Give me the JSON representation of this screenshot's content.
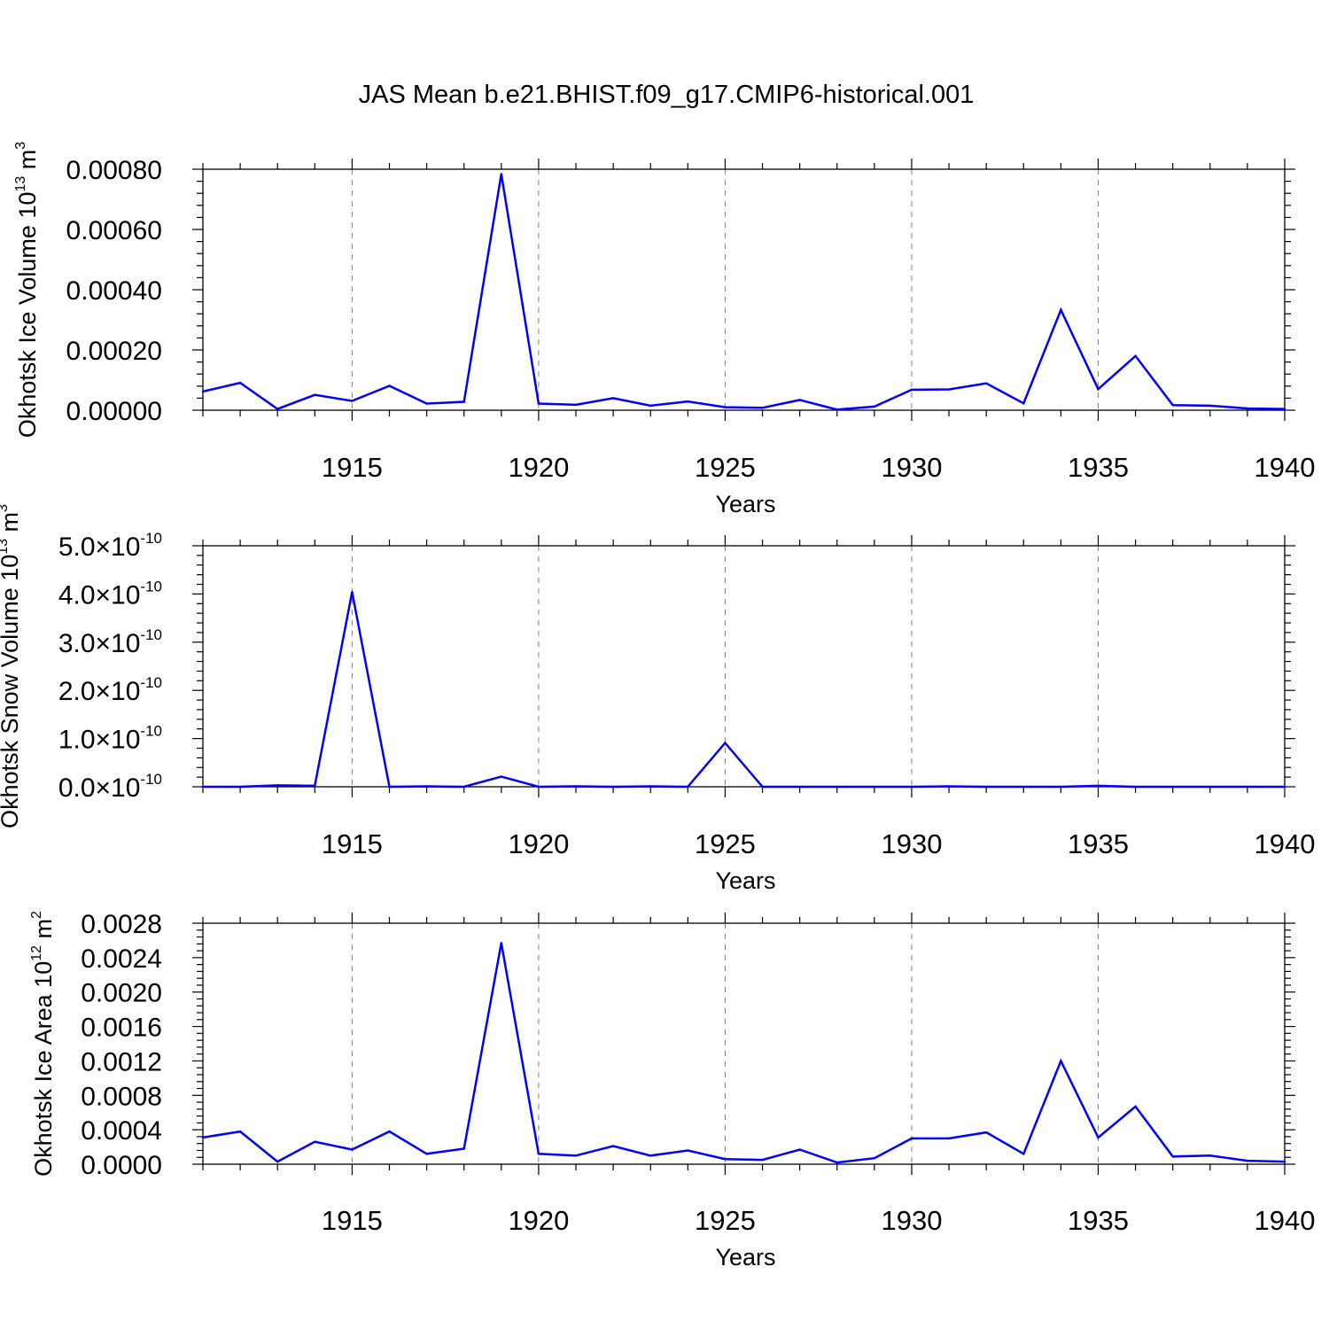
{
  "title": "JAS Mean b.e21.BHIST.f09_g17.CMIP6-historical.001",
  "colors": {
    "line": "#0000ff",
    "axis": "#000000",
    "grid": "#808080"
  },
  "chart_data": [
    {
      "type": "line",
      "ylabel": "Okhotsk Ice Volume 10",
      "ylabel_exp": "13",
      "ylabel_unit": " m",
      "ylabel_unit_exp": "3",
      "xlabel": "Years",
      "xlim": [
        1911,
        1940
      ],
      "ylim": [
        0,
        0.0008
      ],
      "x_ticks": [
        1915,
        1920,
        1925,
        1930,
        1935,
        1940
      ],
      "y_ticks": [
        {
          "value": 0,
          "label": "0.00000"
        },
        {
          "value": 0.0002,
          "label": "0.00020"
        },
        {
          "value": 0.0004,
          "label": "0.00040"
        },
        {
          "value": 0.0006,
          "label": "0.00060"
        },
        {
          "value": 0.0008,
          "label": "0.00080"
        }
      ],
      "grid": "vertical dashed at major x ticks",
      "x": [
        1911,
        1912,
        1913,
        1914,
        1915,
        1916,
        1917,
        1918,
        1919,
        1920,
        1921,
        1922,
        1923,
        1924,
        1925,
        1926,
        1927,
        1928,
        1929,
        1930,
        1931,
        1932,
        1933,
        1934,
        1935,
        1936,
        1937,
        1938,
        1939,
        1940
      ],
      "values": [
        6.2e-05,
        9.1e-05,
        4e-06,
        5.1e-05,
        3.1e-05,
        8.1e-05,
        2.2e-05,
        2.8e-05,
        0.000784,
        2.2e-05,
        1.8e-05,
        4e-05,
        1.5e-05,
        2.9e-05,
        1e-05,
        8e-06,
        3.4e-05,
        2e-06,
        1.2e-05,
        6.8e-05,
        6.9e-05,
        8.9e-05,
        2.3e-05,
        0.000333,
        7e-05,
        0.00018,
        1.7e-05,
        1.5e-05,
        6e-06,
        4e-06
      ]
    },
    {
      "type": "line",
      "ylabel": "Okhotsk Snow Volume 10",
      "ylabel_exp": "13",
      "ylabel_unit": " m",
      "ylabel_unit_exp": "3",
      "xlabel": "Years",
      "xlim": [
        1911,
        1940
      ],
      "ylim": [
        0,
        5e-10
      ],
      "x_ticks": [
        1915,
        1920,
        1925,
        1930,
        1935,
        1940
      ],
      "y_ticks": [
        {
          "value": 0,
          "label": "0.0",
          "sci": "×10",
          "exp": "-10"
        },
        {
          "value": 1e-10,
          "label": "1.0",
          "sci": "×10",
          "exp": "-10"
        },
        {
          "value": 2e-10,
          "label": "2.0",
          "sci": "×10",
          "exp": "-10"
        },
        {
          "value": 3e-10,
          "label": "3.0",
          "sci": "×10",
          "exp": "-10"
        },
        {
          "value": 4e-10,
          "label": "4.0",
          "sci": "×10",
          "exp": "-10"
        },
        {
          "value": 5e-10,
          "label": "5.0",
          "sci": "×10",
          "exp": "-10"
        }
      ],
      "grid": "vertical dashed at major x ticks",
      "x": [
        1911,
        1912,
        1913,
        1914,
        1915,
        1916,
        1917,
        1918,
        1919,
        1920,
        1921,
        1922,
        1923,
        1924,
        1925,
        1926,
        1927,
        1928,
        1929,
        1930,
        1931,
        1932,
        1933,
        1934,
        1935,
        1936,
        1937,
        1938,
        1939,
        1940
      ],
      "values": [
        0.0,
        0.0,
        3e-12,
        2e-12,
        4.04e-10,
        0.0,
        1e-12,
        0.0,
        2.1e-11,
        0.0,
        1e-12,
        0.0,
        1e-12,
        0.0,
        9.1e-11,
        0.0,
        0.0,
        0.0,
        0.0,
        0.0,
        1e-12,
        0.0,
        0.0,
        0.0,
        2e-12,
        0.0,
        0.0,
        0.0,
        0.0,
        0.0
      ]
    },
    {
      "type": "line",
      "ylabel": "Okhotsk Ice Area 10",
      "ylabel_exp": "12",
      "ylabel_unit": " m",
      "ylabel_unit_exp": "2",
      "xlabel": "Years",
      "xlim": [
        1911,
        1940
      ],
      "ylim": [
        0,
        0.0028
      ],
      "x_ticks": [
        1915,
        1920,
        1925,
        1930,
        1935,
        1940
      ],
      "y_ticks": [
        {
          "value": 0,
          "label": "0.0000"
        },
        {
          "value": 0.0004,
          "label": "0.0004"
        },
        {
          "value": 0.0008,
          "label": "0.0008"
        },
        {
          "value": 0.0012,
          "label": "0.0012"
        },
        {
          "value": 0.0016,
          "label": "0.0016"
        },
        {
          "value": 0.002,
          "label": "0.0020"
        },
        {
          "value": 0.0024,
          "label": "0.0024"
        },
        {
          "value": 0.0028,
          "label": "0.0028"
        }
      ],
      "grid": "vertical dashed at major x ticks",
      "x": [
        1911,
        1912,
        1913,
        1914,
        1915,
        1916,
        1917,
        1918,
        1919,
        1920,
        1921,
        1922,
        1923,
        1924,
        1925,
        1926,
        1927,
        1928,
        1929,
        1930,
        1931,
        1932,
        1933,
        1934,
        1935,
        1936,
        1937,
        1938,
        1939,
        1940
      ],
      "values": [
        0.00031,
        0.00038,
        3e-05,
        0.00026,
        0.00017,
        0.00038,
        0.00012,
        0.00018,
        0.00257,
        0.00012,
        0.0001,
        0.00021,
        0.0001,
        0.00016,
        6e-05,
        5e-05,
        0.00017,
        2e-05,
        7e-05,
        0.0003,
        0.0003,
        0.00037,
        0.00012,
        0.0012,
        0.00031,
        0.00067,
        9e-05,
        0.0001,
        4e-05,
        3e-05
      ]
    }
  ]
}
